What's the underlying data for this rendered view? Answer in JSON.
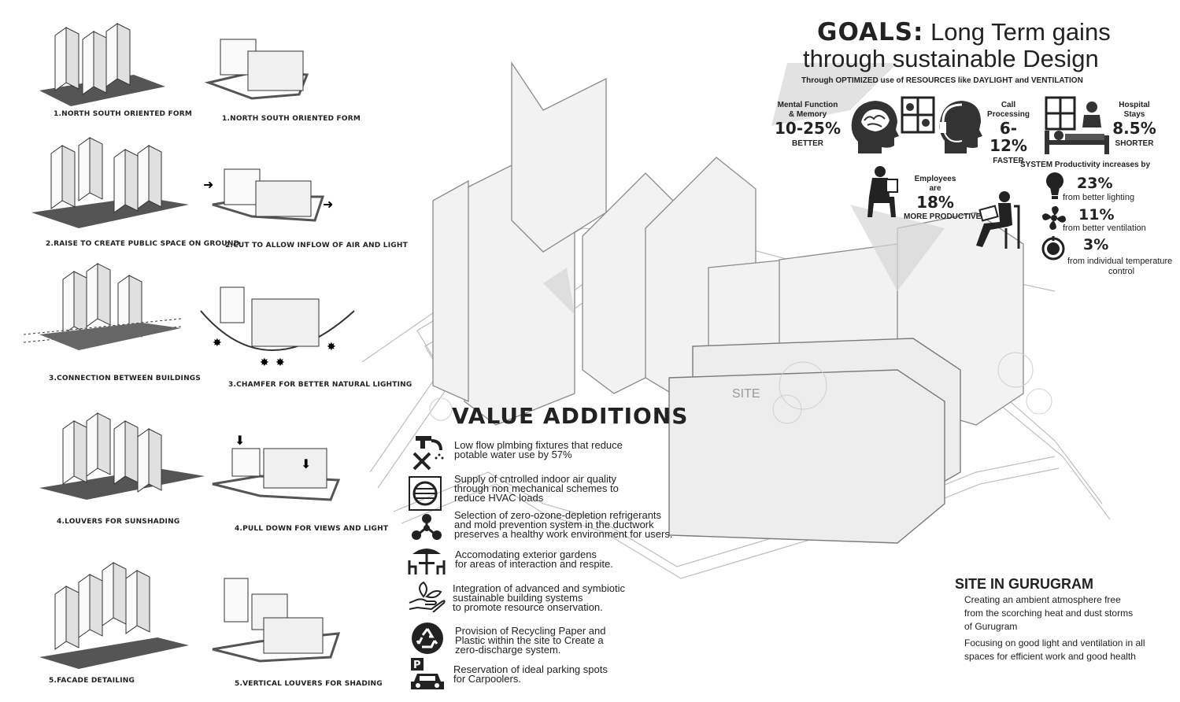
{
  "sketches": [
    {
      "label": "1.NORTH SOUTH ORIENTED FORM"
    },
    {
      "label": "1.NORTH SOUTH ORIENTED FORM"
    },
    {
      "label": "2.RAISE TO CREATE PUBLIC SPACE ON GROUND"
    },
    {
      "label": "2.CUT TO ALLOW INFLOW OF AIR AND LIGHT"
    },
    {
      "label": "3.CONNECTION BETWEEN BUILDINGS"
    },
    {
      "label": "3.CHAMFER FOR BETTER NATURAL LIGHTING"
    },
    {
      "label": "4.LOUVERS FOR SUNSHADING"
    },
    {
      "label": "4.PULL DOWN FOR VIEWS AND LIGHT"
    },
    {
      "label": "5.FACADE DETAILING"
    },
    {
      "label": "5.VERTICAL LOUVERS FOR SHADING"
    }
  ],
  "goals": {
    "prefix": "GOALS:",
    "line1": "Long Term gains",
    "line2": "through sustainable Design",
    "subtitle": "Through OPTIMIZED use of RESOURCES like DAYLIGHT and VENTILATION"
  },
  "stats": {
    "mental": {
      "label1": "Mental Function",
      "label2": "& Memory",
      "value": "10-25%",
      "unit": "BETTER"
    },
    "call": {
      "label1": "Call",
      "label2": "Processing",
      "value": "6-12%",
      "unit": "FASTER"
    },
    "hospital": {
      "label1": "Hospital",
      "label2": "Stays",
      "value": "8.5%",
      "unit": "SHORTER"
    },
    "employees": {
      "label1": "Employees",
      "label2": "are",
      "value": "18%",
      "unit": "MORE PRODUCTIVE"
    }
  },
  "productivity": {
    "heading": "SYSTEM Productivity increases by",
    "items": [
      {
        "value": "23%",
        "text": "from better lighting",
        "icon": "bulb-icon"
      },
      {
        "value": "11%",
        "text": "from better ventilation",
        "icon": "fan-icon"
      },
      {
        "value": "3%",
        "text": "from individual temperature",
        "text2": "control",
        "icon": "thermostat-icon"
      }
    ]
  },
  "site_label": "SITE",
  "value_additions": {
    "title": "VALUE ADDITIONS",
    "items": [
      {
        "icon": "plumbing-icon",
        "line1": "Low flow plmbing fixtures that reduce",
        "line2": "potable water use by 57%",
        "line3": ""
      },
      {
        "icon": "air-vent-icon",
        "line1": "Supply of cntrolled indoor air quality",
        "line2": "through non mechanical schemes to",
        "line3": "reduce HVAC loads"
      },
      {
        "icon": "molecule-icon",
        "line1": "Selection of zero-ozone-depletion refrigerants",
        "line2": "and mold prevention system in the ductwork",
        "line3": "preserves a healthy work environment for users."
      },
      {
        "icon": "garden-table-icon",
        "line1": "Accomodating exterior gardens",
        "line2": "for areas of interaction and respite.",
        "line3": ""
      },
      {
        "icon": "hand-leaf-icon",
        "line1": "Integration of advanced and symbiotic",
        "line2": "sustainable building  systems",
        "line3": "to promote resource onservation."
      },
      {
        "icon": "recycle-icon",
        "line1": "Provision of Recycling Paper and",
        "line2": "Plastic within the site to Create a",
        "line3": "zero-discharge system."
      },
      {
        "icon": "parking-car-icon",
        "line1": "Reservation of ideal parking spots",
        "line2": "for Carpoolers.",
        "line3": ""
      }
    ]
  },
  "site": {
    "title": "SITE IN GURUGRAM",
    "p1_l1": "Creating an ambient atmosphere free",
    "p1_l2": "from the scorching heat and dust storms",
    "p1_l3": "of Gurugram",
    "p2_l1": "Focusing on good light and ventilation in all",
    "p2_l2": "spaces for efficient work and good health"
  },
  "colors": {
    "ink": "#222222",
    "line": "#8a8a8a",
    "shadow": "#555555",
    "background": "#ffffff"
  }
}
